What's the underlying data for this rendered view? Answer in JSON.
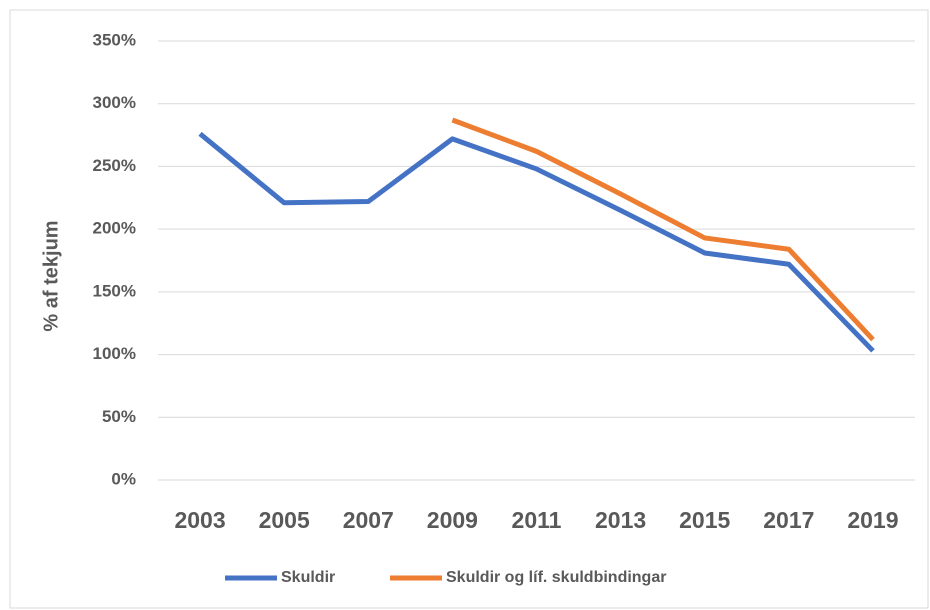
{
  "chart_data": {
    "type": "line",
    "y_label": "% af tekjum",
    "categories": [
      "2003",
      "2005",
      "2007",
      "2009",
      "2011",
      "2013",
      "2015",
      "2017",
      "2019"
    ],
    "series": [
      {
        "name": "Skuldir",
        "color": "#4472c4",
        "values": [
          276,
          221,
          222,
          272,
          248,
          215,
          181,
          172,
          103
        ]
      },
      {
        "name": "Skuldir og líf. skuldbindingar",
        "color": "#ed7d31",
        "values": [
          null,
          null,
          null,
          287,
          262,
          228,
          193,
          184,
          112
        ]
      }
    ],
    "ylim": [
      0,
      350
    ],
    "yticks": [
      {
        "value": 0,
        "label": "0%"
      },
      {
        "value": 50,
        "label": "50%"
      },
      {
        "value": 100,
        "label": "100%"
      },
      {
        "value": 150,
        "label": "150%"
      },
      {
        "value": 200,
        "label": "200%"
      },
      {
        "value": 250,
        "label": "250%"
      },
      {
        "value": 300,
        "label": "300%"
      },
      {
        "value": 350,
        "label": "350%"
      }
    ],
    "grid": true,
    "legend": "bottom"
  }
}
